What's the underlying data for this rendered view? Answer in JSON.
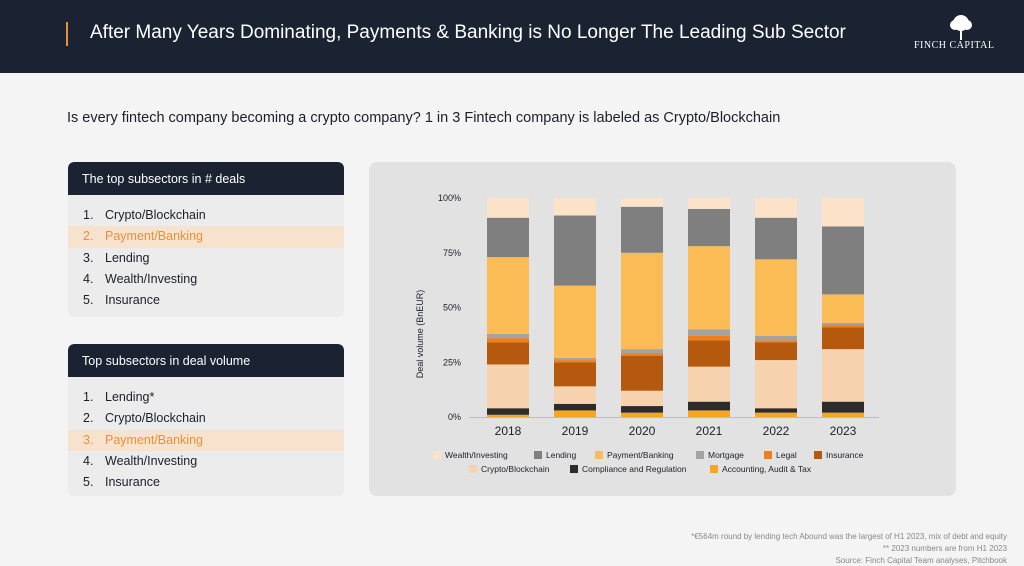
{
  "header": {
    "title": "After Many Years Dominating, Payments & Banking is No Longer The Leading Sub Sector",
    "logo_text": "FINCH CAPITAL"
  },
  "subtitle": "Is every fintech company becoming a crypto company? 1 in 3 Fintech company is labeled as Crypto/Blockchain",
  "panel_deals": {
    "title": "The top subsectors in # deals",
    "items": [
      {
        "num": "1.",
        "label": "Crypto/Blockchain"
      },
      {
        "num": "2.",
        "label": "Payment/Banking"
      },
      {
        "num": "3.",
        "label": "Lending"
      },
      {
        "num": "4.",
        "label": "Wealth/Investing"
      },
      {
        "num": "5.",
        "label": "Insurance"
      }
    ]
  },
  "panel_volume": {
    "title": "Top subsectors in deal volume",
    "items": [
      {
        "num": "1.",
        "label": "Lending*"
      },
      {
        "num": "2.",
        "label": "Crypto/Blockchain"
      },
      {
        "num": "3.",
        "label": "Payment/Banking"
      },
      {
        "num": "4.",
        "label": "Wealth/Investing"
      },
      {
        "num": "5.",
        "label": "Insurance"
      }
    ]
  },
  "colors": {
    "accent": "#e8913a",
    "header_bg": "#1b2232",
    "highlight_bg": "#f7e3cd"
  },
  "chart_data": {
    "type": "bar",
    "stacked": true,
    "ylabel": "Deal volume (BnEUR)",
    "ylim": [
      0,
      100
    ],
    "yticks": [
      "0%",
      "25%",
      "50%",
      "75%",
      "100%"
    ],
    "categories": [
      "2018",
      "2019",
      "2020",
      "2021",
      "2022",
      "2023"
    ],
    "series": [
      {
        "name": "Accounting, Audit & Tax",
        "color": "#f5a623",
        "values": [
          1,
          3,
          2,
          3,
          2,
          2
        ]
      },
      {
        "name": "Compliance and Regulation",
        "color": "#2c2c2c",
        "values": [
          3,
          3,
          3,
          4,
          2,
          5
        ]
      },
      {
        "name": "Crypto/Blockchain",
        "color": "#f7d2ae",
        "values": [
          20,
          8,
          7,
          16,
          22,
          24
        ]
      },
      {
        "name": "Insurance",
        "color": "#b5590e",
        "values": [
          10,
          11,
          16,
          12,
          8,
          10
        ]
      },
      {
        "name": "Legal",
        "color": "#f07f1a",
        "values": [
          2,
          1,
          1,
          2,
          1,
          1
        ]
      },
      {
        "name": "Mortgage",
        "color": "#a3a3a3",
        "values": [
          2,
          1,
          2,
          3,
          2,
          1
        ]
      },
      {
        "name": "Payment/Banking",
        "color": "#fbbc55",
        "values": [
          35,
          33,
          44,
          38,
          35,
          13
        ]
      },
      {
        "name": "Lending",
        "color": "#7f7f7f",
        "values": [
          18,
          32,
          21,
          17,
          19,
          31
        ]
      },
      {
        "name": "Wealth/Investing",
        "color": "#fbe2c8",
        "values": [
          9,
          8,
          4,
          5,
          9,
          13
        ]
      }
    ],
    "legend": {
      "placement": "bottom",
      "rows": [
        [
          "Wealth/Investing",
          "Lending",
          "Payment/Banking",
          "Mortgage",
          "Legal",
          "Insurance"
        ],
        [
          "Crypto/Blockchain",
          "Compliance and Regulation",
          "Accounting, Audit & Tax"
        ]
      ]
    },
    "grid": false
  },
  "footnotes": [
    "*€564m round by lending tech Abound was the largest of H1 2023, mix of debt and equity",
    "** 2023 numbers are from H1 2023",
    "Source: Finch Capital Team analyses, Pitchbook"
  ]
}
